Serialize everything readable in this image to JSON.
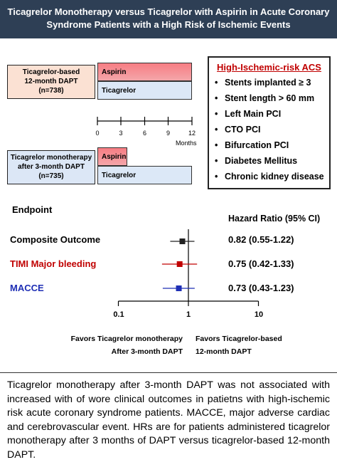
{
  "title": {
    "line1": "Ticagrelor Monotherapy versus Ticagrelor with Aspirin in Acute Coronary",
    "line2": "Syndrome Patients with a High Risk of Ischemic Events"
  },
  "arms": {
    "dapt": {
      "line1": "Ticagrelor-based",
      "line2": "12-month DAPT",
      "line3": "(n=738)"
    },
    "mono": {
      "line1": "Ticagrelor monotherapy",
      "line2": "after 3-month DAPT",
      "line3": "(n=735)"
    }
  },
  "bars": {
    "aspirin_label": "Aspirin",
    "ticagrelor_label": "Ticagrelor"
  },
  "timeline": {
    "ticks": [
      "0",
      "3",
      "6",
      "9",
      "12"
    ],
    "unit": "Months"
  },
  "risk": {
    "title": "High-Ischemic-risk ACS",
    "items": [
      "Stents implanted ≥ 3",
      "Stent length > 60 mm",
      "Left Main PCI",
      "CTO PCI",
      "Bifurcation PCI",
      "Diabetes Mellitus",
      "Chronic kidney disease"
    ]
  },
  "forest": {
    "endpoint_header": "Endpoint",
    "hr_header": "Hazard Ratio (95% CI)",
    "rows": [
      {
        "label": "Composite Outcome",
        "hr": 0.82,
        "lo": 0.55,
        "hi": 1.22,
        "text": "0.82 (0.55-1.22)",
        "color": "#222222"
      },
      {
        "label": "TIMI Major bleeding",
        "hr": 0.75,
        "lo": 0.42,
        "hi": 1.33,
        "text": "0.75 (0.42-1.33)",
        "color": "#c00000"
      },
      {
        "label": "MACCE",
        "hr": 0.73,
        "lo": 0.43,
        "hi": 1.23,
        "text": "0.73 (0.43-1.23)",
        "color": "#1f2fb5"
      }
    ],
    "axis_ticks": [
      "0.1",
      "1",
      "10"
    ],
    "favors_left": {
      "line1": "Favors Ticagrelor monotherapy",
      "line2": "After 3-month DAPT"
    },
    "favors_right": {
      "line1": "Favors Ticagrelor-based",
      "line2": "12-month DAPT"
    }
  },
  "caption": "Ticagrelor monotherapy after 3-month DAPT was not associated with increased with of wore clinical outcomes in patietns with high-ischemic risk acute coronary syndrome patients. MACCE, major adverse cardiac and cerebrovascular event. HRs are for patients administered ticagrelor monotherapy after 3 months of DAPT versus ticagrelor-based 12-month DAPT."
}
